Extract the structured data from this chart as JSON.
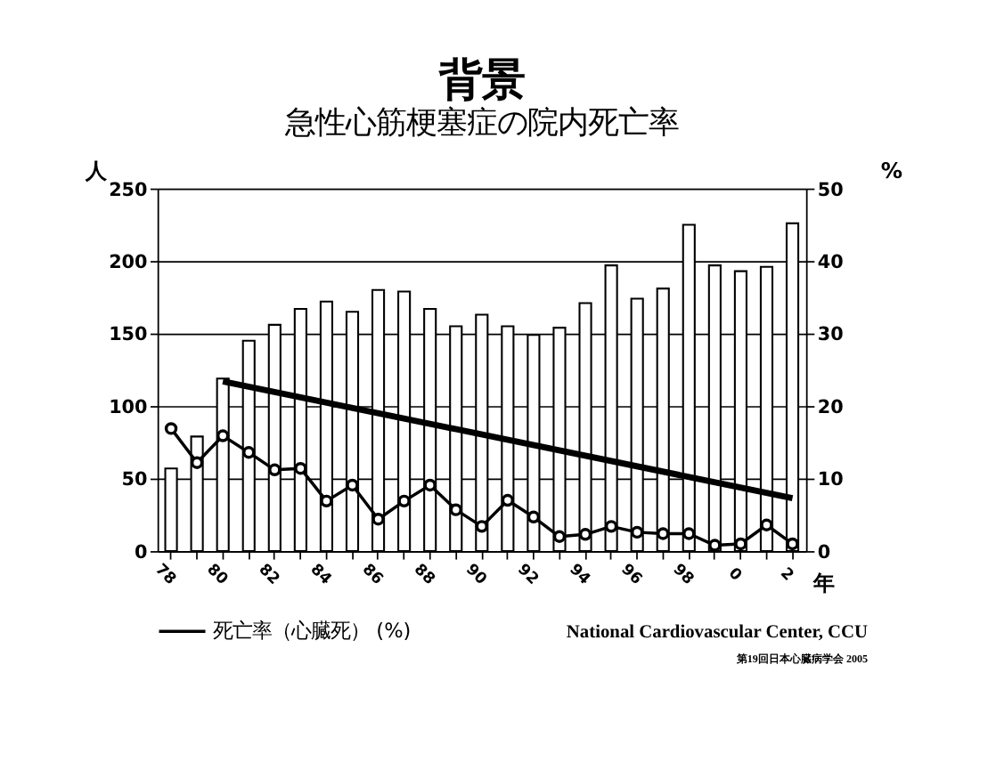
{
  "chart_data": {
    "type": "bar",
    "title": "背景",
    "subtitle": "急性心筋梗塞症の院内死亡率",
    "ylabel": "人",
    "y2label": "%",
    "xlabel": "年",
    "categories": [
      "78",
      null,
      "80",
      null,
      "82",
      null,
      "84",
      null,
      "86",
      null,
      "88",
      null,
      "90",
      null,
      "92",
      null,
      "94",
      null,
      "96",
      null,
      "98",
      null,
      "0",
      null,
      "2"
    ],
    "series": [
      {
        "color": "#ffffff",
        "values": [
          57,
          79,
          119,
          145,
          156,
          167,
          172,
          165,
          180,
          179,
          167,
          155,
          163,
          155,
          149,
          154,
          171,
          197,
          174,
          181,
          225,
          197,
          193,
          196,
          226
        ]
      },
      {
        "type": "line",
        "axis": "y2",
        "name": "死亡率（心臓死） (%)",
        "color": "#000000",
        "marker": "circle",
        "values": [
          16.9,
          12.2,
          15.9,
          13.6,
          11.2,
          11.4,
          6.9,
          9.1,
          4.4,
          6.9,
          9.1,
          5.7,
          3.4,
          7.0,
          4.7,
          2.0,
          2.3,
          3.4,
          2.6,
          2.4,
          2.4,
          0.8,
          1.0,
          3.6,
          1.0
        ]
      },
      {
        "type": "line",
        "axis": "y2",
        "color": "#000000",
        "marker": "none",
        "x": [
          "80",
          "2"
        ],
        "values": [
          23.4,
          7.3
        ]
      }
    ],
    "ylim": [
      0,
      250
    ],
    "yticks": [
      0,
      50,
      100,
      150,
      200,
      250
    ],
    "y2lim": [
      0,
      50
    ],
    "y2ticks": [
      0,
      10,
      20,
      30,
      40,
      50
    ],
    "grid": "y",
    "legend": "bottom",
    "annotations": [
      "National Cardiovascular Center, CCU",
      "第19回日本心臓病学会 2005"
    ]
  }
}
